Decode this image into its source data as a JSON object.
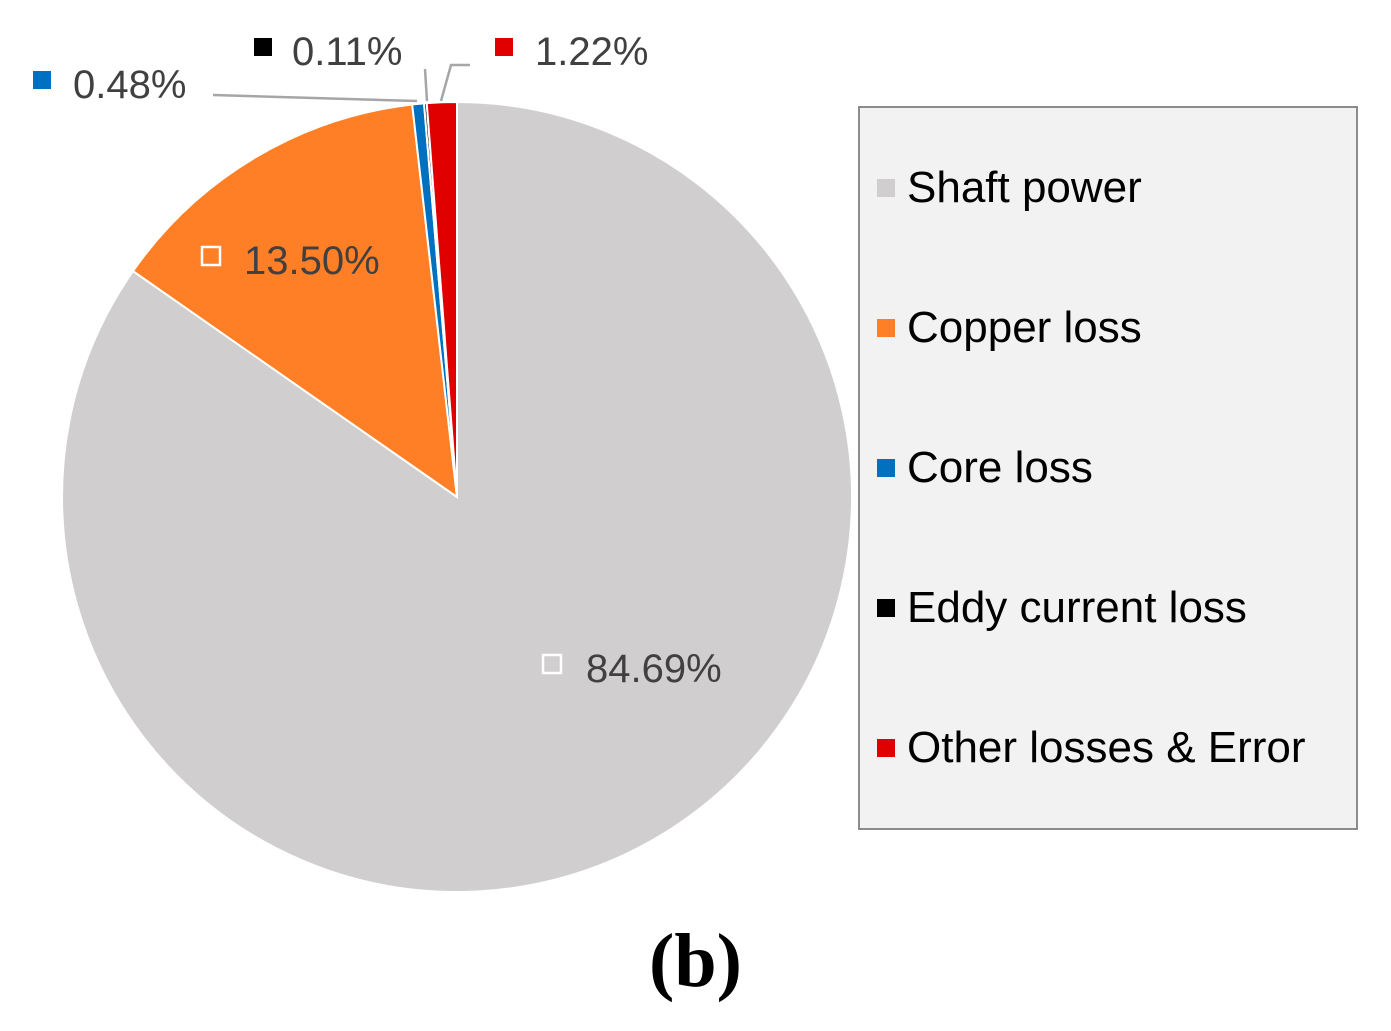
{
  "chart_data": {
    "type": "pie",
    "start_angle_deg": 90,
    "direction": "clockwise",
    "categories": [
      "Shaft power",
      "Copper loss",
      "Core loss",
      "Eddy current loss",
      "Other losses & Error"
    ],
    "values": [
      84.69,
      13.5,
      0.48,
      0.11,
      1.22
    ],
    "data_labels": [
      "84.69%",
      "13.50%",
      "0.48%",
      "0.11%",
      "1.22%"
    ],
    "colors": [
      "#d0cece",
      "#ff7f27",
      "#0070c0",
      "#000000",
      "#e00000"
    ],
    "legend": {
      "position": "right",
      "entries": [
        "Shaft power",
        "Copper loss",
        "Core loss",
        "Eddy current loss",
        "Other losses & Error"
      ]
    }
  },
  "caption": "(b)"
}
